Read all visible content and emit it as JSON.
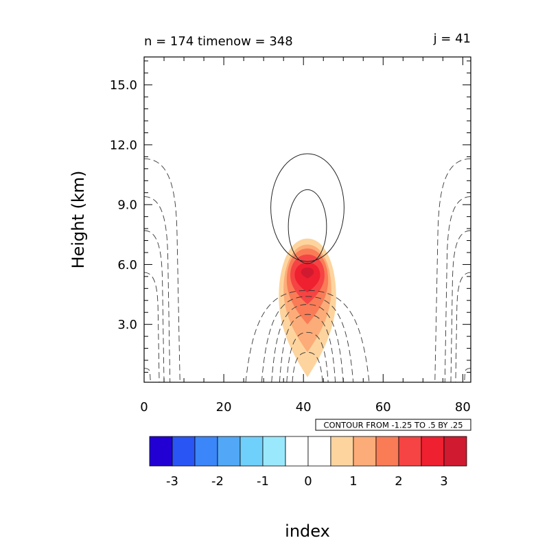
{
  "chart_data": {
    "type": "heatmap",
    "title_left": "n = 174 timenow = 348",
    "title_right": "j = 41",
    "xlabel": "index",
    "ylabel": "Height (km)",
    "xlim": [
      0,
      82
    ],
    "ylim": [
      0.1,
      16.4
    ],
    "x_ticks": [
      0,
      20,
      40,
      60,
      80
    ],
    "x_tick_labels": [
      "0",
      "20",
      "40",
      "60",
      "80"
    ],
    "y_ticks": [
      3.0,
      6.0,
      9.0,
      12.0,
      15.0
    ],
    "y_tick_labels": [
      "3.0",
      "6.0",
      "9.0",
      "12.0",
      "15.0"
    ],
    "contour_info": "CONTOUR FROM -1.25 TO .5 BY .25",
    "colorbar": {
      "colors": [
        "#2200d4",
        "#2a55f5",
        "#3b86f8",
        "#52a8f7",
        "#6fd0fb",
        "#9ae8fc",
        "#ffffff",
        "#ffffff",
        "#fdd49e",
        "#fcac78",
        "#f97c57",
        "#f54443",
        "#ef2030",
        "#d01a30"
      ],
      "tick_values": [
        -3,
        -2,
        -1,
        0,
        1,
        2,
        3
      ],
      "tick_labels": [
        "-3",
        "-2",
        "-1",
        "0",
        "1",
        "2",
        "3"
      ]
    },
    "filled_feature": {
      "center_x": 41,
      "peak_height_km": 5.6,
      "peak_value": 3.2,
      "levels": [
        {
          "value": 1.0,
          "color": "#fdd49e",
          "top_km": 7.3,
          "bottom_km": 0.35,
          "half_width": 7.2
        },
        {
          "value": 1.5,
          "color": "#fcac78",
          "top_km": 7.0,
          "bottom_km": 1.6,
          "half_width": 6.0
        },
        {
          "value": 2.0,
          "color": "#f97c57",
          "top_km": 6.8,
          "bottom_km": 3.0,
          "half_width": 5.2
        },
        {
          "value": 2.5,
          "color": "#f54443",
          "top_km": 6.5,
          "bottom_km": 4.0,
          "half_width": 4.3
        },
        {
          "value": 3.0,
          "color": "#ef2030",
          "top_km": 6.1,
          "bottom_km": 4.6,
          "half_width": 3.2
        },
        {
          "value": 3.2,
          "color": "#d01a30",
          "top_km": 5.85,
          "bottom_km": 5.3,
          "half_width": 1.6
        }
      ]
    },
    "solid_contours": [
      {
        "cx": 41,
        "cy_km": 8.85,
        "rx": 9.2,
        "ry_km": 2.7
      },
      {
        "cx": 41,
        "cy_km": 7.9,
        "rx": 4.8,
        "ry_km": 1.85
      }
    ],
    "dashed_contours": [
      {
        "type": "dome",
        "cx": 41,
        "top_km": 4.7,
        "half_width": 15.5
      },
      {
        "type": "dome",
        "cx": 41,
        "top_km": 4.4,
        "half_width": 11.5
      },
      {
        "type": "dome",
        "cx": 41,
        "top_km": 4.0,
        "half_width": 9.0
      },
      {
        "type": "dome",
        "cx": 41,
        "top_km": 3.5,
        "half_width": 7.0
      },
      {
        "type": "dome",
        "cx": 41,
        "top_km": 2.6,
        "half_width": 5.2
      },
      {
        "type": "dome",
        "cx": 41,
        "top_km": 1.6,
        "half_width": 3.8
      },
      {
        "type": "edge",
        "side": "left",
        "top_km": 11.3,
        "reach": 9.0
      },
      {
        "type": "edge",
        "side": "left",
        "top_km": 9.4,
        "reach": 6.5
      },
      {
        "type": "edge",
        "side": "left",
        "top_km": 7.7,
        "reach": 5.0
      },
      {
        "type": "edge",
        "side": "left",
        "top_km": 5.6,
        "reach": 3.8
      },
      {
        "type": "edge",
        "side": "left",
        "top_km": 0.8,
        "reach": 1.6
      },
      {
        "type": "edge",
        "side": "right",
        "top_km": 11.3,
        "reach": 9.0
      },
      {
        "type": "edge",
        "side": "right",
        "top_km": 9.4,
        "reach": 6.5
      },
      {
        "type": "edge",
        "side": "right",
        "top_km": 7.7,
        "reach": 5.0
      },
      {
        "type": "edge",
        "side": "right",
        "top_km": 5.6,
        "reach": 3.8
      },
      {
        "type": "edge",
        "side": "right",
        "top_km": 0.8,
        "reach": 1.6
      }
    ]
  }
}
